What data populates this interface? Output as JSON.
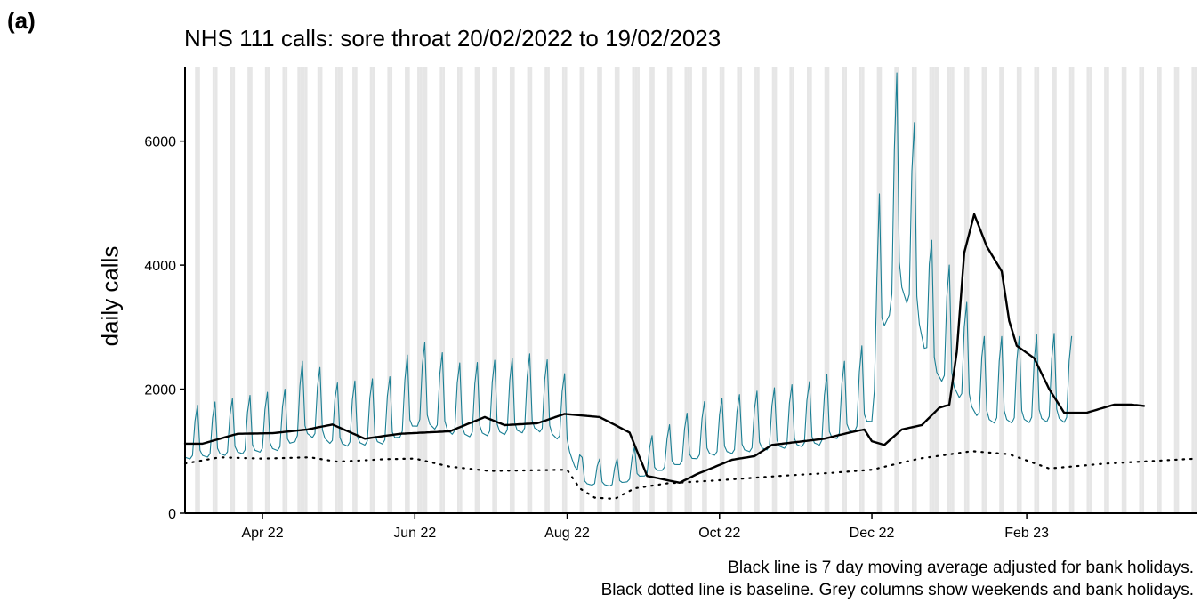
{
  "panel_label": "(a)",
  "captions": [
    "Black line is 7 day moving average adjusted for bank holidays.",
    "Black dotted line is baseline. Grey columns show weekends and bank holidays."
  ],
  "colors": {
    "daily": "#1a7f94",
    "moving_average": "#000000",
    "baseline": "#000000",
    "weekend_column": "#e6e6e6"
  },
  "chart_data": {
    "type": "line",
    "title": "NHS 111 calls: sore throat 20/02/2022 to 19/02/2023",
    "xlabel": "",
    "ylabel": "daily calls",
    "x_range": [
      "2022-03-01",
      "2023-04-10"
    ],
    "ylim": [
      0,
      7200
    ],
    "y_ticks": [
      0,
      2000,
      4000,
      6000
    ],
    "x_ticks": [
      {
        "label": "Apr 22",
        "date": "2022-04-01"
      },
      {
        "label": "Jun 22",
        "date": "2022-06-01"
      },
      {
        "label": "Aug 22",
        "date": "2022-08-01"
      },
      {
        "label": "Oct 22",
        "date": "2022-10-01"
      },
      {
        "label": "Dec 22",
        "date": "2022-12-01"
      },
      {
        "label": "Feb 23",
        "date": "2023-02-01"
      }
    ],
    "grid": false,
    "shading": "weekends and bank holidays",
    "bank_holidays": [
      "2022-04-15",
      "2022-04-18",
      "2022-05-02",
      "2022-06-02",
      "2022-06-03",
      "2022-08-29",
      "2022-09-19",
      "2022-12-26",
      "2022-12-27",
      "2023-01-02"
    ],
    "series": [
      {
        "name": "daily calls",
        "style": "thin",
        "weekly_pattern": true,
        "points": [
          [
            "2022-03-01",
            1700
          ],
          [
            "2022-03-20",
            1850
          ],
          [
            "2022-04-10",
            2000
          ],
          [
            "2022-04-17",
            2450
          ],
          [
            "2022-04-24",
            2350
          ],
          [
            "2022-05-01",
            2100
          ],
          [
            "2022-05-22",
            2200
          ],
          [
            "2022-06-03",
            2800
          ],
          [
            "2022-06-20",
            2400
          ],
          [
            "2022-07-10",
            2500
          ],
          [
            "2022-07-20",
            2600
          ],
          [
            "2022-07-31",
            2250
          ],
          [
            "2022-08-07",
            900
          ],
          [
            "2022-08-20",
            850
          ],
          [
            "2022-08-29",
            1100
          ],
          [
            "2022-09-10",
            1400
          ],
          [
            "2022-09-25",
            1800
          ],
          [
            "2022-10-20",
            2000
          ],
          [
            "2022-11-10",
            2150
          ],
          [
            "2022-11-25",
            2600
          ],
          [
            "2022-12-01",
            2900
          ],
          [
            "2022-12-04",
            5150
          ],
          [
            "2022-12-11",
            7100
          ],
          [
            "2022-12-18",
            6300
          ],
          [
            "2022-12-25",
            4400
          ],
          [
            "2023-01-01",
            4000
          ],
          [
            "2023-01-08",
            3400
          ],
          [
            "2023-01-15",
            2850
          ],
          [
            "2023-01-29",
            2850
          ],
          [
            "2023-02-12",
            2900
          ],
          [
            "2023-02-19",
            2850
          ]
        ]
      },
      {
        "name": "7 day moving average",
        "style": "thick",
        "points": [
          [
            "2022-03-01",
            1120
          ],
          [
            "2022-03-08",
            1120
          ],
          [
            "2022-03-15",
            1200
          ],
          [
            "2022-03-22",
            1280
          ],
          [
            "2022-04-05",
            1290
          ],
          [
            "2022-04-19",
            1350
          ],
          [
            "2022-04-29",
            1430
          ],
          [
            "2022-05-12",
            1200
          ],
          [
            "2022-05-26",
            1280
          ],
          [
            "2022-06-15",
            1320
          ],
          [
            "2022-06-29",
            1550
          ],
          [
            "2022-07-07",
            1420
          ],
          [
            "2022-07-20",
            1450
          ],
          [
            "2022-07-31",
            1600
          ],
          [
            "2022-08-14",
            1550
          ],
          [
            "2022-08-26",
            1300
          ],
          [
            "2022-09-02",
            600
          ],
          [
            "2022-09-15",
            490
          ],
          [
            "2022-09-22",
            630
          ],
          [
            "2022-10-06",
            860
          ],
          [
            "2022-10-15",
            920
          ],
          [
            "2022-10-22",
            1100
          ],
          [
            "2022-11-12",
            1200
          ],
          [
            "2022-11-22",
            1300
          ],
          [
            "2022-11-28",
            1350
          ],
          [
            "2022-12-01",
            1160
          ],
          [
            "2022-12-06",
            1100
          ],
          [
            "2022-12-13",
            1350
          ],
          [
            "2022-12-21",
            1420
          ],
          [
            "2022-12-28",
            1700
          ],
          [
            "2023-01-01",
            1750
          ],
          [
            "2023-01-04",
            2600
          ],
          [
            "2023-01-07",
            4200
          ],
          [
            "2023-01-11",
            4820
          ],
          [
            "2023-01-16",
            4300
          ],
          [
            "2023-01-22",
            3900
          ],
          [
            "2023-01-25",
            3100
          ],
          [
            "2023-01-28",
            2700
          ],
          [
            "2023-02-04",
            2500
          ],
          [
            "2023-02-10",
            2000
          ],
          [
            "2023-02-16",
            1620
          ],
          [
            "2023-02-25",
            1620
          ],
          [
            "2023-03-08",
            1750
          ],
          [
            "2023-03-15",
            1750
          ],
          [
            "2023-03-20",
            1730
          ]
        ]
      },
      {
        "name": "baseline",
        "style": "dotted",
        "points": [
          [
            "2022-03-01",
            800
          ],
          [
            "2022-03-15",
            900
          ],
          [
            "2022-04-01",
            880
          ],
          [
            "2022-04-20",
            900
          ],
          [
            "2022-05-01",
            830
          ],
          [
            "2022-05-20",
            870
          ],
          [
            "2022-06-01",
            880
          ],
          [
            "2022-06-15",
            750
          ],
          [
            "2022-07-01",
            680
          ],
          [
            "2022-08-01",
            700
          ],
          [
            "2022-08-06",
            400
          ],
          [
            "2022-08-12",
            250
          ],
          [
            "2022-08-20",
            230
          ],
          [
            "2022-08-28",
            400
          ],
          [
            "2022-09-10",
            480
          ],
          [
            "2022-10-01",
            530
          ],
          [
            "2022-10-25",
            600
          ],
          [
            "2022-11-15",
            650
          ],
          [
            "2022-12-01",
            700
          ],
          [
            "2022-12-20",
            880
          ],
          [
            "2023-01-10",
            1000
          ],
          [
            "2023-01-25",
            950
          ],
          [
            "2023-02-10",
            720
          ],
          [
            "2023-03-05",
            800
          ],
          [
            "2023-04-10",
            880
          ]
        ]
      }
    ]
  }
}
